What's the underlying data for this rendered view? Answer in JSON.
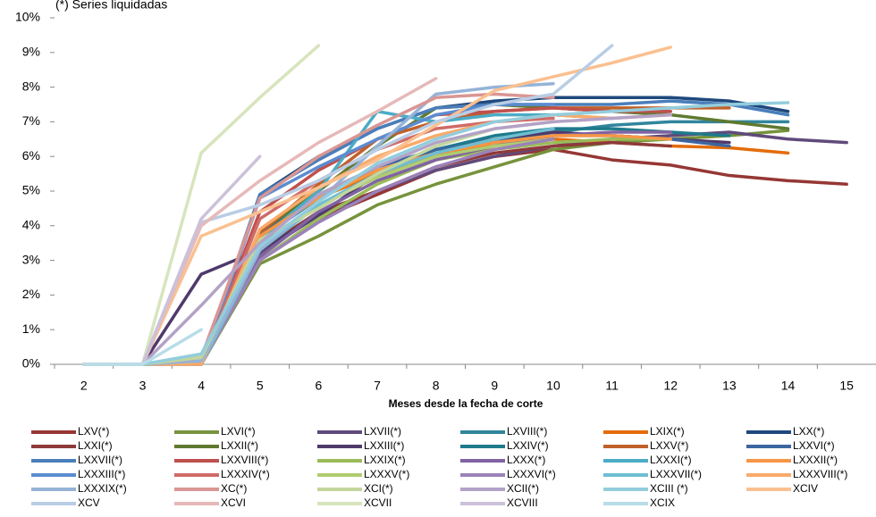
{
  "chart_data": {
    "type": "line",
    "title": "(*) Series liquidadas",
    "x_label": "Meses desde la fecha de corte",
    "categories": [
      2,
      3,
      4,
      5,
      6,
      7,
      8,
      9,
      10,
      11,
      12,
      13,
      14,
      15
    ],
    "ylim": [
      0,
      10
    ],
    "yticks": [
      {
        "value": 0,
        "label": "0%"
      },
      {
        "value": 1,
        "label": "1%"
      },
      {
        "value": 2,
        "label": "2%"
      },
      {
        "value": 3,
        "label": "3%"
      },
      {
        "value": 4,
        "label": "4%"
      },
      {
        "value": 5,
        "label": "5%"
      },
      {
        "value": 6,
        "label": "6%"
      },
      {
        "value": 7,
        "label": "7%"
      },
      {
        "value": 8,
        "label": "8%"
      },
      {
        "value": 9,
        "label": "9%"
      },
      {
        "value": 10,
        "label": "10%"
      }
    ],
    "series": [
      {
        "name": "LXV(*)",
        "color": "#953735",
        "values": [
          0,
          0,
          0,
          3.0,
          4.2,
          4.9,
          5.6,
          6.0,
          6.2,
          5.9,
          5.75,
          5.45,
          5.3,
          5.2
        ]
      },
      {
        "name": "LXVI(*)",
        "color": "#77933c",
        "values": [
          0,
          0,
          0,
          2.9,
          3.7,
          4.6,
          5.2,
          5.7,
          6.2,
          6.4,
          6.5,
          6.6,
          6.75,
          null
        ]
      },
      {
        "name": "LXVII(*)",
        "color": "#604a7b",
        "values": [
          0,
          0,
          0,
          3.2,
          4.3,
          5.0,
          5.6,
          6.0,
          6.3,
          6.5,
          6.6,
          6.7,
          6.5,
          6.4
        ]
      },
      {
        "name": "LXVIII(*)",
        "color": "#31859c",
        "values": [
          0,
          0,
          0,
          3.5,
          4.6,
          5.4,
          6.0,
          6.4,
          6.7,
          6.9,
          7.0,
          7.0,
          7.0,
          null
        ]
      },
      {
        "name": "LXIX(*)",
        "color": "#e46c0a",
        "values": [
          0,
          0,
          0,
          3.7,
          4.8,
          5.5,
          6.0,
          6.4,
          6.5,
          6.4,
          6.3,
          6.25,
          6.1,
          null
        ]
      },
      {
        "name": "LXX(*)",
        "color": "#1f497d",
        "values": [
          0,
          0,
          0,
          4.9,
          6.0,
          6.8,
          7.4,
          7.6,
          7.7,
          7.7,
          7.7,
          7.6,
          7.3,
          null
        ]
      },
      {
        "name": "LXXI(*)",
        "color": "#8e3a3a",
        "values": [
          0,
          0,
          0,
          3.3,
          4.4,
          5.0,
          5.7,
          6.1,
          6.3,
          6.4,
          6.3,
          null,
          null,
          null
        ]
      },
      {
        "name": "LXXII(*)",
        "color": "#5f7a30",
        "values": [
          0,
          0,
          0,
          3.8,
          5.0,
          6.3,
          7.4,
          7.5,
          7.4,
          7.3,
          7.2,
          7.0,
          6.8,
          null
        ]
      },
      {
        "name": "LXXIII(*)",
        "color": "#4f3a6b",
        "values": [
          0,
          0,
          2.6,
          3.3,
          4.3,
          5.5,
          6.2,
          6.5,
          6.7,
          6.6,
          6.5,
          6.4,
          null,
          null
        ]
      },
      {
        "name": "LXXIV(*)",
        "color": "#1e7a8c",
        "values": [
          0,
          0,
          0,
          3.6,
          4.8,
          5.7,
          6.2,
          6.6,
          6.8,
          6.8,
          6.7,
          6.6,
          null,
          null
        ]
      },
      {
        "name": "LXXV(*)",
        "color": "#c0612a",
        "values": [
          0,
          0,
          0,
          3.8,
          5.2,
          6.5,
          7.0,
          7.3,
          7.4,
          7.4,
          7.4,
          7.4,
          null,
          null
        ]
      },
      {
        "name": "LXXVI(*)",
        "color": "#3c66a0",
        "values": [
          0,
          0,
          0,
          3.7,
          4.9,
          5.7,
          6.2,
          6.4,
          6.6,
          6.6,
          6.5,
          6.3,
          null,
          null
        ]
      },
      {
        "name": "LXXVII(*)",
        "color": "#4a7ebb",
        "values": [
          0,
          0,
          0,
          4.9,
          5.9,
          6.8,
          7.4,
          7.5,
          7.5,
          7.5,
          7.6,
          7.5,
          7.2,
          null
        ]
      },
      {
        "name": "LXXVIII(*)",
        "color": "#c0504d",
        "values": [
          0,
          0,
          0,
          4.4,
          5.6,
          6.5,
          7.2,
          7.3,
          7.4,
          7.3,
          7.3,
          null,
          null,
          null
        ]
      },
      {
        "name": "LXXIX(*)",
        "color": "#9bbb59",
        "values": [
          0,
          0,
          0,
          3.0,
          4.2,
          5.2,
          5.9,
          6.2,
          6.4,
          6.5,
          6.5,
          null,
          null,
          null
        ]
      },
      {
        "name": "LXXX(*)",
        "color": "#8064a2",
        "values": [
          0,
          0,
          0,
          3.1,
          4.4,
          5.3,
          5.9,
          6.3,
          6.6,
          6.7,
          6.7,
          null,
          null,
          null
        ]
      },
      {
        "name": "LXXXI(*)",
        "color": "#4bacc6",
        "values": [
          0,
          0,
          0,
          3.6,
          5.0,
          7.3,
          7.0,
          7.2,
          7.2,
          7.1,
          null,
          null,
          null,
          null
        ]
      },
      {
        "name": "LXXXII(*)",
        "color": "#f79646",
        "values": [
          0,
          0,
          0,
          3.7,
          4.8,
          5.6,
          6.1,
          6.4,
          6.6,
          6.6,
          6.5,
          null,
          null,
          null
        ]
      },
      {
        "name": "LXXXIII(*)",
        "color": "#5b8cd0",
        "values": [
          0,
          0,
          0,
          4.8,
          5.7,
          6.5,
          7.2,
          7.5,
          7.5,
          null,
          null,
          null,
          null,
          null
        ]
      },
      {
        "name": "LXXXIV(*)",
        "color": "#d06b68",
        "values": [
          0,
          0,
          0,
          4.2,
          5.3,
          6.2,
          6.8,
          7.0,
          7.1,
          null,
          null,
          null,
          null,
          null
        ]
      },
      {
        "name": "LXXXV(*)",
        "color": "#b0cc70",
        "values": [
          0,
          0,
          0,
          3.3,
          4.6,
          5.4,
          6.0,
          6.3,
          6.5,
          null,
          null,
          null,
          null,
          null
        ]
      },
      {
        "name": "LXXXVI(*)",
        "color": "#9b82b8",
        "values": [
          0,
          0,
          0,
          3.0,
          4.1,
          5.0,
          5.7,
          6.2,
          6.5,
          null,
          null,
          null,
          null,
          null
        ]
      },
      {
        "name": "LXXXVII(*)",
        "color": "#6ebed2",
        "values": [
          0,
          0,
          0,
          3.3,
          4.6,
          5.5,
          6.1,
          6.5,
          6.8,
          null,
          null,
          null,
          null,
          null
        ]
      },
      {
        "name": "LXXXVIII(*)",
        "color": "#f9aa6a",
        "values": [
          0,
          0,
          0,
          3.9,
          5.1,
          6.0,
          6.6,
          7.0,
          7.2,
          7.1,
          7.2,
          null,
          null,
          null
        ]
      },
      {
        "name": "LXXXIX(*)",
        "color": "#95b3d7",
        "values": [
          0,
          0,
          0.1,
          3.3,
          4.7,
          6.3,
          7.8,
          8.0,
          8.1,
          null,
          null,
          null,
          null,
          null
        ]
      },
      {
        "name": "XC(*)",
        "color": "#d99694",
        "values": [
          0,
          0,
          0.2,
          4.8,
          6.0,
          6.9,
          7.7,
          7.8,
          7.7,
          null,
          null,
          null,
          null,
          null
        ]
      },
      {
        "name": "XCI(*)",
        "color": "#c3d69b",
        "values": [
          0,
          0,
          0.2,
          3.6,
          4.5,
          5.5,
          6.3,
          6.8,
          7.0,
          null,
          null,
          null,
          null,
          null
        ]
      },
      {
        "name": "XCII(*)",
        "color": "#b3a2c7",
        "values": [
          0,
          0,
          1.7,
          3.5,
          4.9,
          5.7,
          6.4,
          6.8,
          7.0,
          7.1,
          7.2,
          null,
          null,
          null
        ]
      },
      {
        "name": "XCIII (*)",
        "color": "#93cddd",
        "values": [
          0,
          0,
          0.3,
          3.4,
          4.7,
          5.8,
          6.5,
          7.0,
          7.2,
          7.3,
          7.4,
          7.5,
          7.55,
          null
        ]
      },
      {
        "name": "XCIV",
        "color": "#fac090",
        "values": [
          0,
          0,
          3.7,
          4.4,
          5.1,
          5.9,
          6.9,
          7.9,
          8.3,
          8.7,
          9.15,
          null,
          null,
          null
        ]
      },
      {
        "name": "XCV",
        "color": "#b9cde5",
        "values": [
          0,
          0,
          4.1,
          4.6,
          5.3,
          6.2,
          7.0,
          7.5,
          7.8,
          9.2,
          null,
          null,
          null,
          null
        ]
      },
      {
        "name": "XCVI",
        "color": "#e6b9b8",
        "values": [
          0,
          0,
          4.0,
          5.3,
          6.4,
          7.3,
          8.25,
          null,
          null,
          null,
          null,
          null,
          null,
          null
        ]
      },
      {
        "name": "XCVII",
        "color": "#d7e4bd",
        "values": [
          0,
          0,
          6.1,
          7.7,
          9.2,
          null,
          null,
          null,
          null,
          null,
          null,
          null,
          null,
          null
        ]
      },
      {
        "name": "XCVIII",
        "color": "#ccc1da",
        "values": [
          0,
          0,
          4.2,
          6.0,
          null,
          null,
          null,
          null,
          null,
          null,
          null,
          null,
          null,
          null
        ]
      },
      {
        "name": "XCIX",
        "color": "#b7dde8",
        "values": [
          0,
          0,
          1.0,
          null,
          null,
          null,
          null,
          null,
          null,
          null,
          null,
          null,
          null,
          null
        ]
      }
    ]
  }
}
